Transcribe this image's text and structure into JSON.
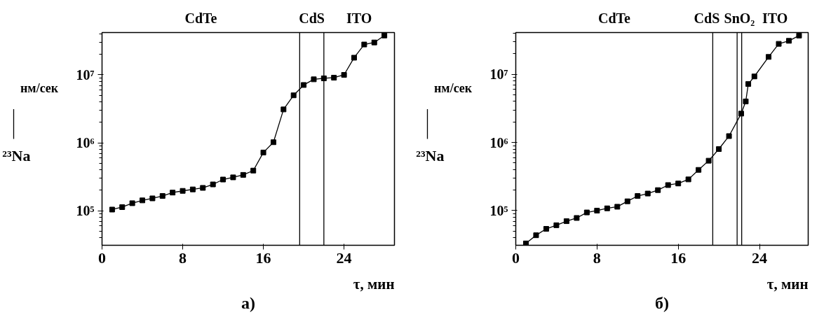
{
  "chart_data": [
    {
      "type": "line",
      "title": "а)",
      "xlabel": "τ, мин",
      "log": "y",
      "marker": "square",
      "line_style": "solid",
      "grid": false,
      "x": [
        1,
        2,
        3,
        4,
        5,
        6,
        7,
        8,
        9,
        10,
        11,
        12,
        13,
        14,
        15,
        16,
        17,
        18,
        19,
        20,
        21,
        22,
        23,
        24,
        25,
        26,
        27,
        28
      ],
      "series": [
        {
          "color": "#000000",
          "values": [
            104000,
            113000,
            129000,
            142000,
            152000,
            165000,
            185000,
            196000,
            206000,
            217000,
            244000,
            288000,
            310000,
            337000,
            390000,
            720000,
            1020000,
            3100000,
            5000000,
            7100000,
            8600000,
            8900000,
            9100000,
            10000000,
            17900000,
            28000000,
            30000000,
            38000000
          ]
        }
      ],
      "xlim": [
        0,
        29
      ],
      "ylim": [
        31000,
        42000000
      ],
      "xticks": [
        0,
        8,
        16,
        24
      ],
      "ylabel": "²³Na",
      "yticks": [
        {
          "value": 100000,
          "label": "10⁵"
        },
        {
          "value": 1000000,
          "label": "10⁶"
        },
        {
          "value": 10000000,
          "label": "10⁷"
        }
      ],
      "ref_lines": [
        {
          "axis": "x",
          "value": 19.6,
          "label": null,
          "color": "#000000"
        },
        {
          "axis": "x",
          "value": 22.0,
          "label": null,
          "color": "#000000"
        }
      ],
      "annotations": [
        "нм/сек",
        "CdTe",
        "CdS",
        "ITO"
      ]
    },
    {
      "type": "line",
      "title": "б)",
      "xlabel": "τ, мин",
      "log": "y",
      "marker": "square",
      "line_style": "solid",
      "grid": false,
      "x": [
        1,
        2,
        3,
        4,
        5,
        6,
        7,
        8,
        9,
        10,
        11,
        12,
        13,
        14,
        15,
        16,
        17,
        18,
        19,
        20,
        21,
        22.2,
        22.65,
        22.9,
        23.5,
        24.9,
        25.9,
        26.9,
        27.9
      ],
      "series": [
        {
          "color": "#000000",
          "values": [
            33000,
            43500,
            54000,
            61000,
            70000,
            78000,
            94000,
            100000,
            108000,
            114000,
            137000,
            164000,
            178000,
            200000,
            237000,
            250000,
            287000,
            396000,
            540000,
            800000,
            1240000,
            2650000,
            4000000,
            7200000,
            9300000,
            18000000,
            28000000,
            31000000,
            37000000
          ]
        }
      ],
      "xlim": [
        0,
        28.8
      ],
      "ylim": [
        31000,
        41000000
      ],
      "xticks": [
        0,
        8,
        16,
        24
      ],
      "ylabel": "²³Na",
      "yticks": [
        {
          "value": 100000,
          "label": "10⁵"
        },
        {
          "value": 1000000,
          "label": "10⁶"
        },
        {
          "value": 10000000,
          "label": "10⁷"
        }
      ],
      "ref_lines": [
        {
          "axis": "x",
          "value": 19.4,
          "label": null,
          "color": "#000000"
        },
        {
          "axis": "x",
          "value": 21.8,
          "label": null,
          "color": "#000000"
        },
        {
          "axis": "x",
          "value": 22.25,
          "label": null,
          "color": "#000000"
        }
      ],
      "annotations": [
        "нм/сек",
        "CdTe",
        "CdS",
        "SnO₂",
        "ITO"
      ]
    }
  ]
}
